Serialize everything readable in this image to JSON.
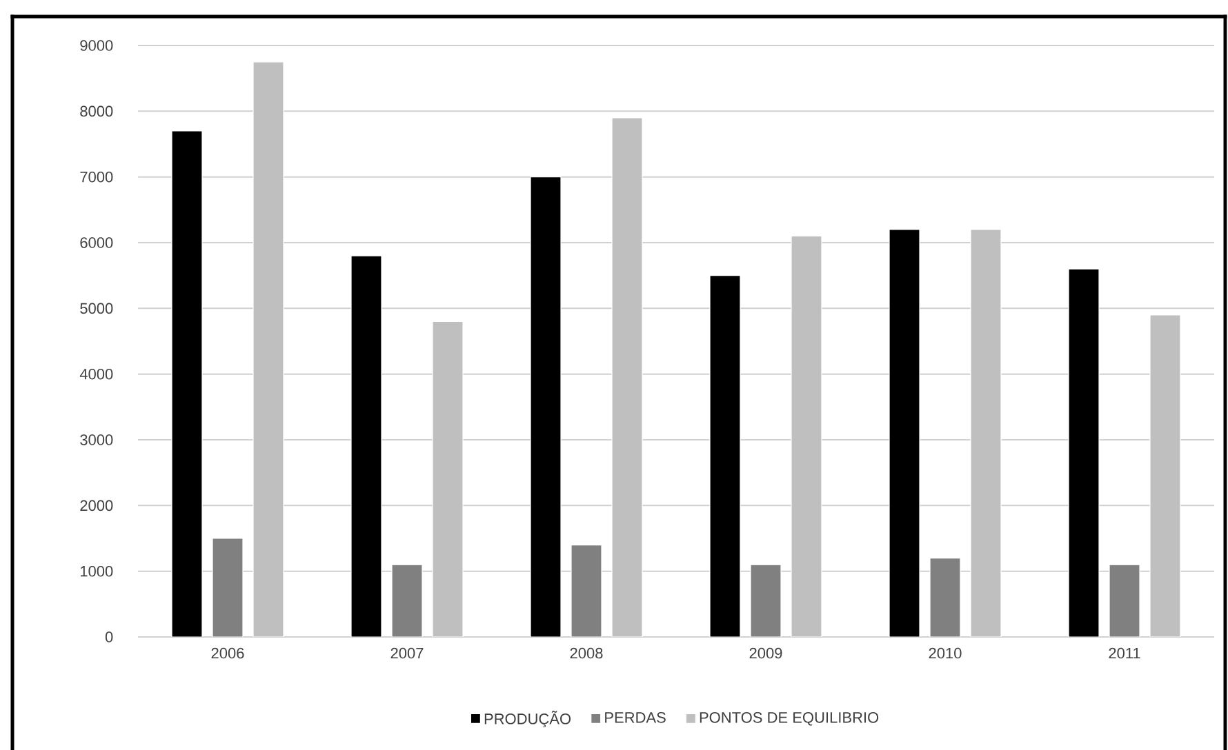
{
  "chart_data": {
    "type": "bar",
    "categories": [
      "2006",
      "2007",
      "2008",
      "2009",
      "2010",
      "2011"
    ],
    "series": [
      {
        "name": "PRODUÇÃO",
        "color": "#000000",
        "values": [
          7700,
          5800,
          7000,
          5500,
          6200,
          5600
        ]
      },
      {
        "name": "PERDAS",
        "color": "#808080",
        "values": [
          1500,
          1100,
          1400,
          1100,
          1200,
          1100
        ]
      },
      {
        "name": "PONTOS DE EQUILIBRIO",
        "color": "#bfbfbf",
        "values": [
          8750,
          4800,
          7900,
          6100,
          6200,
          4900
        ]
      }
    ],
    "ylim": [
      0,
      9000
    ],
    "yticks": [
      0,
      1000,
      2000,
      3000,
      4000,
      5000,
      6000,
      7000,
      8000,
      9000
    ],
    "grid": "y",
    "legend": "bottom"
  }
}
